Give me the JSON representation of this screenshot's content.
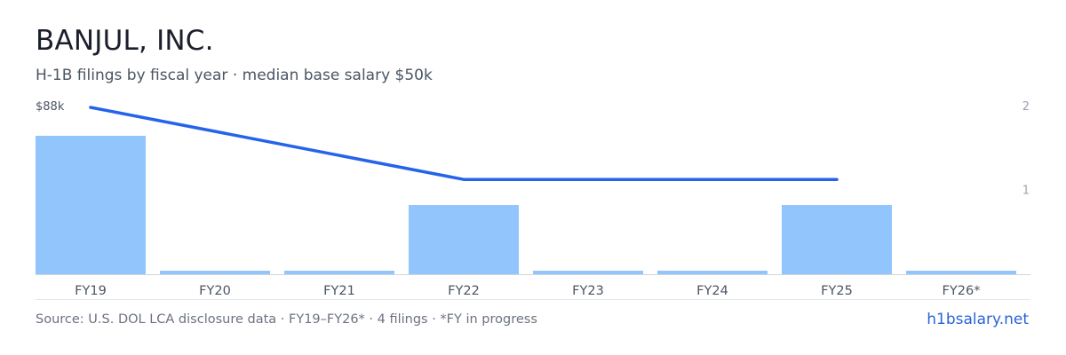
{
  "header": {
    "title": "BANJUL, INC.",
    "subtitle": "H-1B filings by fiscal year · median base salary $50k"
  },
  "footer": {
    "source": "Source: U.S. DOL LCA disclosure data · FY19–FY26* · 4 filings · *FY in progress",
    "link": "h1bsalary.net"
  },
  "colors": {
    "bar": "#93c5fd",
    "line": "#2563eb",
    "axis": "#d1d5db",
    "tick_text": "#4b5563",
    "right_tick_text": "#9ca3af"
  },
  "chart_data": {
    "type": "bar",
    "categories": [
      "FY19",
      "FY20",
      "FY21",
      "FY22",
      "FY23",
      "FY24",
      "FY25",
      "FY26*"
    ],
    "series": [
      {
        "type": "bar",
        "axis": "right",
        "values": [
          2,
          0,
          0,
          1,
          0,
          0,
          1,
          0
        ]
      },
      {
        "type": "line",
        "axis": "left",
        "values": [
          88,
          null,
          null,
          50,
          null,
          null,
          50,
          null
        ]
      }
    ],
    "y_left": {
      "tick_label": "$88k",
      "max": 88,
      "min": 0
    },
    "y_right": {
      "ticks": [
        "2",
        "1"
      ],
      "min": 0,
      "max": 2
    },
    "grid": false
  }
}
